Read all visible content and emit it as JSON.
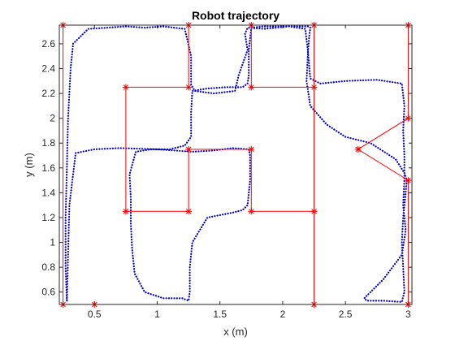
{
  "chart_data": {
    "type": "line",
    "title": "Robot trajectory",
    "xlabel": "x (m)",
    "ylabel": "y (m)",
    "xlim": [
      0.22,
      3.03
    ],
    "ylim": [
      0.5,
      2.75
    ],
    "xticks": [
      "0.5",
      "1",
      "1.5",
      "2",
      "2.5",
      "3"
    ],
    "xtick_values": [
      0.5,
      1.0,
      1.5,
      2.0,
      2.5,
      3.0
    ],
    "yticks": [
      "0.6",
      "0.8",
      "1",
      "1.2",
      "1.4",
      "1.6",
      "1.8",
      "2",
      "2.2",
      "2.4",
      "2.6"
    ],
    "ytick_values": [
      0.6,
      0.8,
      1.0,
      1.2,
      1.4,
      1.6,
      1.8,
      2.0,
      2.2,
      2.4,
      2.6
    ],
    "grid": false,
    "colors": {
      "reference": "#ff0000",
      "actual": "#0000cc",
      "axes": "#262626"
    },
    "series": [
      {
        "style": "red solid line with asterisk markers",
        "x": [
          0.25,
          0.25,
          1.25,
          1.25,
          0.75,
          0.75,
          1.25,
          1.25,
          1.75,
          1.75,
          2.25,
          2.25,
          3.0,
          3.0,
          2.6,
          3.0,
          3.0,
          2.25,
          2.25,
          1.75,
          1.75,
          2.25,
          2.25,
          0.5,
          0.25
        ],
        "y": [
          0.5,
          2.75,
          2.75,
          2.25,
          2.25,
          1.25,
          1.25,
          1.75,
          1.75,
          1.25,
          1.25,
          0.5,
          0.5,
          1.5,
          1.75,
          2.0,
          2.75,
          2.75,
          2.25,
          2.25,
          2.75,
          2.75,
          0.5,
          0.5,
          0.5
        ]
      },
      {
        "style": "blue dotted line",
        "x": [
          0.28,
          0.27,
          0.27,
          0.28,
          0.29,
          0.31,
          0.33,
          0.45,
          0.6,
          0.75,
          0.9,
          1.05,
          1.22,
          1.27,
          1.27,
          1.3,
          1.45,
          1.62,
          1.65,
          1.72,
          1.7,
          1.72,
          1.85,
          2.05,
          2.18,
          2.2,
          2.22,
          2.3,
          2.5,
          2.75,
          2.95,
          2.97,
          2.96,
          2.97,
          2.97,
          2.96,
          2.98,
          2.95,
          2.8,
          2.65,
          2.67,
          2.8,
          2.95,
          2.97,
          2.96,
          2.95,
          2.96,
          2.98,
          2.99,
          2.97,
          2.9,
          2.7,
          2.5,
          2.35,
          2.22,
          2.19,
          2.2,
          2.21,
          2.22,
          2.2,
          2.05,
          1.85,
          1.75,
          1.73,
          1.73,
          1.72,
          1.68,
          1.55,
          1.4,
          1.28,
          1.27,
          1.27,
          1.22,
          1.1,
          0.95,
          0.83,
          0.78,
          0.79,
          0.79,
          0.8,
          0.82,
          0.9,
          1.05,
          1.2,
          1.25,
          1.26,
          1.26,
          1.28,
          1.4,
          1.6,
          1.68,
          1.72,
          1.74,
          1.74,
          1.73,
          1.6,
          1.45,
          1.28,
          1.0,
          0.7,
          0.5,
          0.35,
          0.3,
          0.28
        ],
        "y": [
          0.53,
          0.8,
          1.2,
          1.6,
          2.0,
          2.4,
          2.6,
          2.72,
          2.73,
          2.74,
          2.73,
          2.74,
          2.72,
          2.5,
          2.27,
          2.22,
          2.2,
          2.22,
          2.35,
          2.55,
          2.68,
          2.73,
          2.72,
          2.74,
          2.72,
          2.55,
          2.32,
          2.28,
          2.3,
          2.31,
          2.28,
          2.1,
          1.9,
          1.7,
          1.5,
          1.3,
          1.1,
          0.9,
          0.7,
          0.55,
          0.53,
          0.53,
          0.52,
          0.6,
          0.8,
          1.0,
          1.2,
          1.4,
          1.5,
          1.56,
          1.67,
          1.8,
          1.85,
          1.95,
          2.1,
          2.3,
          2.5,
          2.65,
          2.73,
          2.74,
          2.74,
          2.74,
          2.73,
          2.55,
          2.35,
          2.28,
          2.25,
          2.25,
          2.24,
          2.22,
          2.05,
          1.85,
          1.78,
          1.75,
          1.75,
          1.73,
          1.55,
          1.35,
          1.15,
          0.95,
          0.75,
          0.6,
          0.55,
          0.55,
          0.53,
          0.6,
          0.8,
          1.0,
          1.2,
          1.24,
          1.26,
          1.3,
          1.5,
          1.7,
          1.75,
          1.76,
          1.74,
          1.73,
          1.75,
          1.76,
          1.75,
          1.72,
          1.3,
          0.53
        ]
      }
    ]
  }
}
